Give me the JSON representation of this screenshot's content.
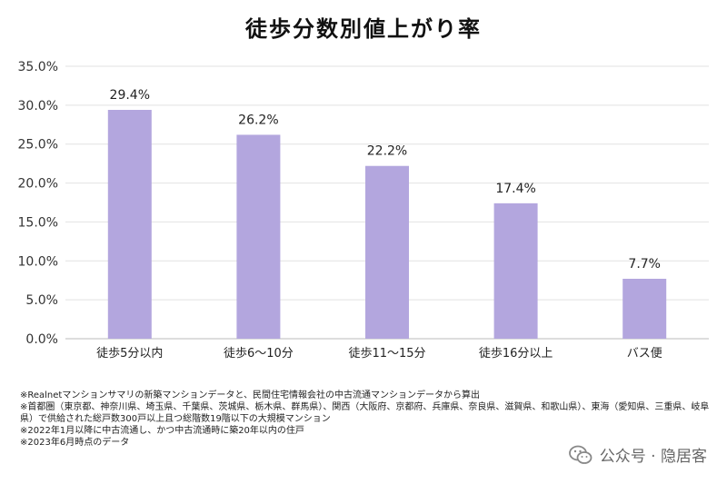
{
  "chart_data": {
    "type": "bar",
    "title": "徒歩分数別値上がり率",
    "categories": [
      "徒歩5分以内",
      "徒歩6〜10分",
      "徒歩11〜15分",
      "徒歩16分以上",
      "バス便"
    ],
    "values": [
      29.4,
      26.2,
      22.2,
      17.4,
      7.7
    ],
    "value_labels": [
      "29.4%",
      "26.2%",
      "22.2%",
      "17.4%",
      "7.7%"
    ],
    "ylim": [
      0,
      35
    ],
    "yticks": [
      "0.0%",
      "5.0%",
      "10.0%",
      "15.0%",
      "20.0%",
      "25.0%",
      "30.0%",
      "35.0%"
    ],
    "xlabel": "",
    "ylabel": "",
    "grid": true,
    "legend": "none",
    "bar_color": "#b3a6de"
  },
  "notes": [
    "※Realnetマンションサマリの新築マンションデータと、民間住宅情報会社の中古流通マンションデータから算出",
    "※首都圏（東京都、神奈川県、埼玉県、千葉県、茨城県、栃木県、群馬県）、関西（大阪府、京都府、兵庫県、奈良県、滋賀県、和歌山県）、東海（愛知県、三重県、岐阜県）で供給された総戸数300戸以上且つ総階数19階以下の大規模マンション",
    "※2022年1月以降に中古流通し、かつ中古流通時に築20年以内の住戸",
    "※2023年6月時点のデータ"
  ],
  "watermark": {
    "text": "公众号 · 隐居客",
    "icon": "wechat-icon"
  }
}
